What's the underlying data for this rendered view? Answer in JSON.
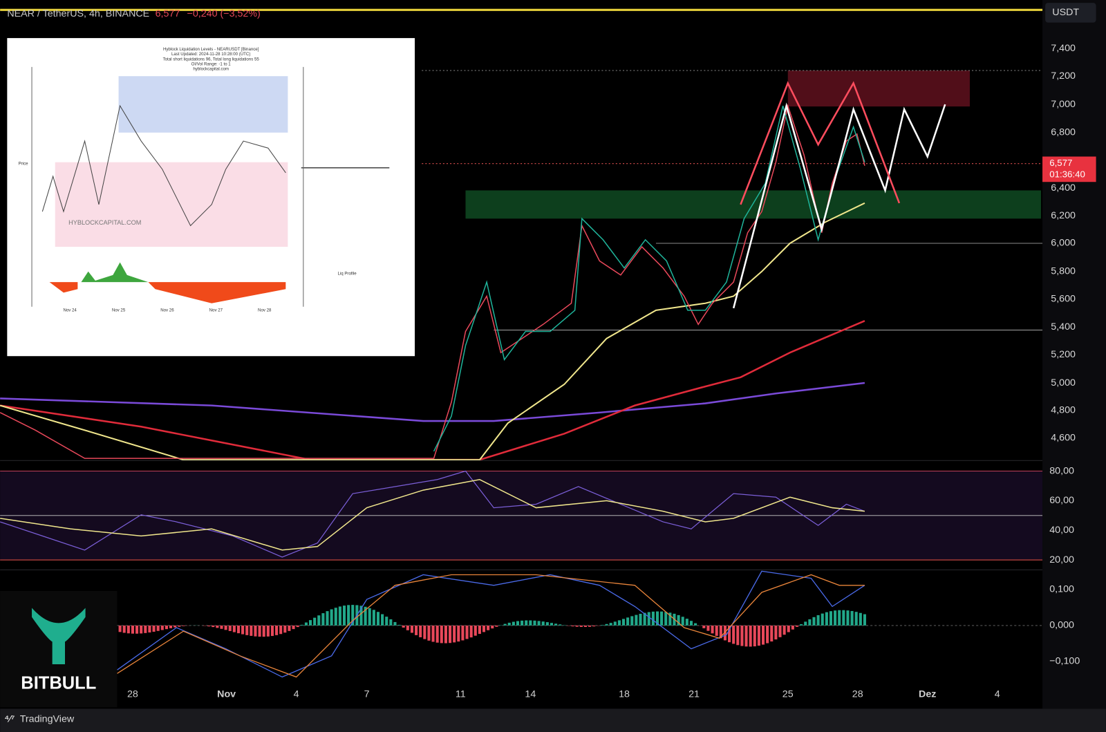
{
  "header": {
    "symbol": "NEAR / TetherUS, 4h, BINANCE",
    "price": "6,577",
    "change": "−0,240 (−3,52%)"
  },
  "price_axis": {
    "currency": "USDT",
    "labels": [
      "7,400",
      "7,200",
      "7,000",
      "6,800",
      "6,400",
      "6,200",
      "6,000",
      "5,800",
      "5,600",
      "5,400",
      "5,200",
      "5,000",
      "4,800",
      "4,600"
    ],
    "current_price": "6,577",
    "countdown": "01:36:40"
  },
  "rsi_axis": {
    "labels": [
      "80,00",
      "60,00",
      "40,00",
      "20,00"
    ]
  },
  "macd_axis": {
    "labels": [
      "0,100",
      "0,000",
      "−0,100"
    ]
  },
  "time_axis": {
    "labels": [
      "28",
      "Nov",
      "4",
      "7",
      "11",
      "14",
      "18",
      "21",
      "25",
      "28",
      "Dez",
      "4"
    ]
  },
  "inset": {
    "title": "Hyblock Liquidation Levels - NEARUSDT [Binance]",
    "updated": "Last Updated: 2024-11-28 10:28:00 (UTC)",
    "totals": "Total short liquidations 96, Total long liquidations 55",
    "range": "OI/Vol Range: -1 to 1",
    "site": "hyblockcapital.com",
    "watermark": "HYBLOCKCAPITAL.COM",
    "y_label": "Price",
    "profile_label": "Liq Profile",
    "dates": [
      "Nov 24",
      "Nov 25",
      "Nov 26",
      "Nov 27",
      "Nov 28"
    ]
  },
  "logo": "BITBULL",
  "footer": "TradingView"
}
